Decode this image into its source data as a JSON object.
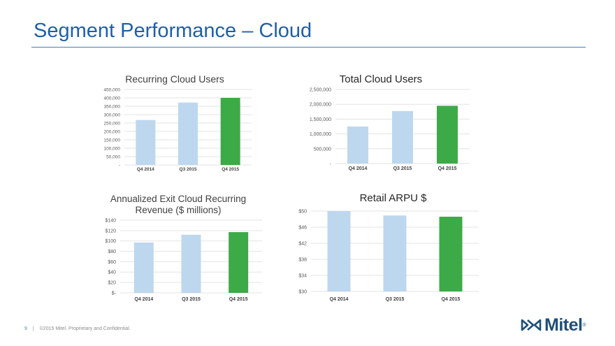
{
  "page": {
    "title": "Segment Performance – Cloud",
    "page_number": "9",
    "separator": "|",
    "footer": "©2015 Mitel. Proprietary and Confidential.",
    "logo": "Mitel",
    "logo_mark": "®"
  },
  "colors": {
    "light_bar": "#bdd7ee",
    "highlight_bar": "#3daa48",
    "title": "#1f5fa8",
    "grid": "#e3e3e3"
  },
  "chart_data": [
    {
      "type": "bar",
      "title": "Recurring Cloud Users",
      "categories": [
        "Q4 2014",
        "Q3 2015",
        "Q4 2015"
      ],
      "values": [
        268000,
        372000,
        400000
      ],
      "highlight": [
        false,
        false,
        true
      ],
      "ylim": [
        0,
        450000
      ],
      "yticks": [
        0,
        50000,
        100000,
        150000,
        200000,
        250000,
        300000,
        350000,
        400000,
        450000
      ],
      "ytick_labels": [
        "-",
        "50,000",
        "100,000",
        "150,000",
        "200,000",
        "250,000",
        "300,000",
        "350,000",
        "400,000",
        "450,000"
      ],
      "grid": true
    },
    {
      "type": "bar",
      "title": "Total Cloud Users",
      "categories": [
        "Q4 2014",
        "Q3 2015",
        "Q4 2015"
      ],
      "values": [
        1250000,
        1770000,
        1950000
      ],
      "highlight": [
        false,
        false,
        true
      ],
      "ylim": [
        0,
        2500000
      ],
      "yticks": [
        0,
        500000,
        1000000,
        1500000,
        2000000,
        2500000
      ],
      "ytick_labels": [
        "-",
        "500,000",
        "1,000,000",
        "1,500,000",
        "2,000,000",
        "2,500,000"
      ],
      "grid": true
    },
    {
      "type": "bar",
      "title": "Annualized Exit Cloud Recurring Revenue ($ millions)",
      "title_lines": [
        "Annualized Exit Cloud Recurring",
        "Revenue ($ millions)"
      ],
      "categories": [
        "Q4 2014",
        "Q3 2015",
        "Q4 2015"
      ],
      "values": [
        97,
        112,
        117
      ],
      "highlight": [
        false,
        false,
        true
      ],
      "ylim": [
        0,
        140
      ],
      "yticks": [
        0,
        20,
        40,
        60,
        80,
        100,
        120,
        140
      ],
      "ytick_labels": [
        "$-",
        "$20",
        "$40",
        "$60",
        "$80",
        "$100",
        "$120",
        "$140"
      ],
      "grid": true
    },
    {
      "type": "bar",
      "title": "Retail ARPU $",
      "categories": [
        "Q4 2014",
        "Q3 2015",
        "Q4 2015"
      ],
      "values": [
        50,
        48.9,
        48.6
      ],
      "highlight": [
        false,
        false,
        true
      ],
      "ylim": [
        30,
        50
      ],
      "yticks": [
        30,
        34,
        38,
        42,
        46,
        50
      ],
      "ytick_labels": [
        "$30",
        "$34",
        "$38",
        "$42",
        "$46",
        "$50"
      ],
      "grid": true
    }
  ]
}
